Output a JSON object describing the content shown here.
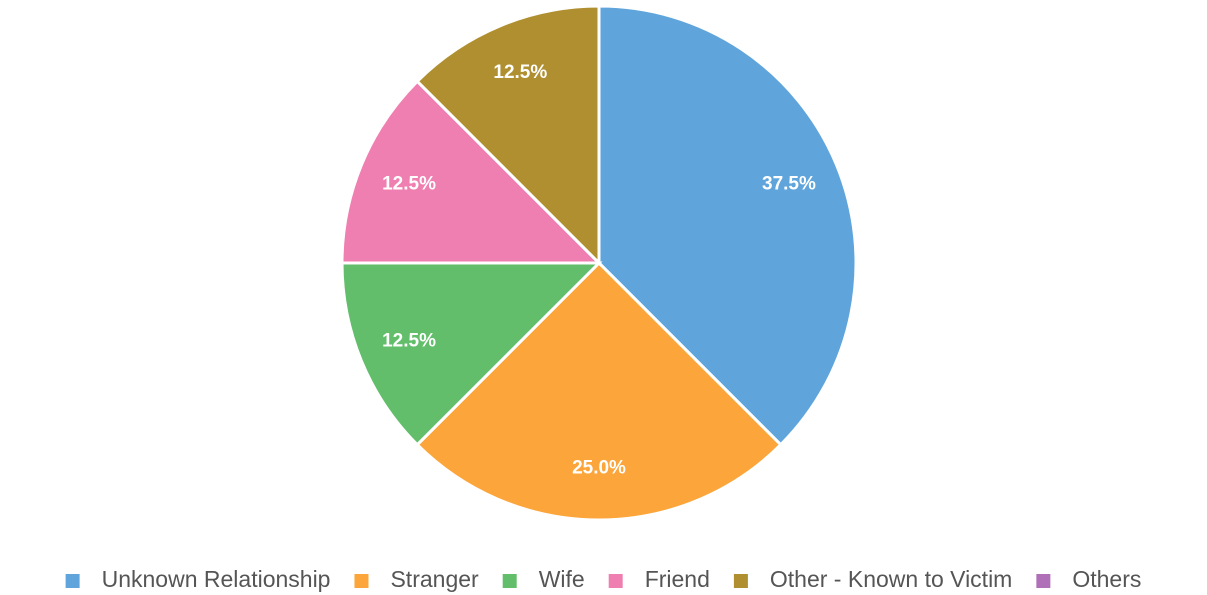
{
  "chart_data": {
    "type": "pie",
    "categories": [
      "Unknown Relationship",
      "Stranger",
      "Wife",
      "Friend",
      "Other - Known to Victim",
      "Others"
    ],
    "values": [
      37.5,
      25.0,
      12.5,
      12.5,
      12.5,
      0
    ],
    "value_labels": [
      "37.5%",
      "25.0%",
      "12.5%",
      "12.5%",
      "12.5%",
      null
    ],
    "colors": [
      "#5fa5dc",
      "#fba53a",
      "#62be6a",
      "#f07fb1",
      "#b08f30",
      "#b070b8"
    ],
    "legend": "bottom"
  }
}
